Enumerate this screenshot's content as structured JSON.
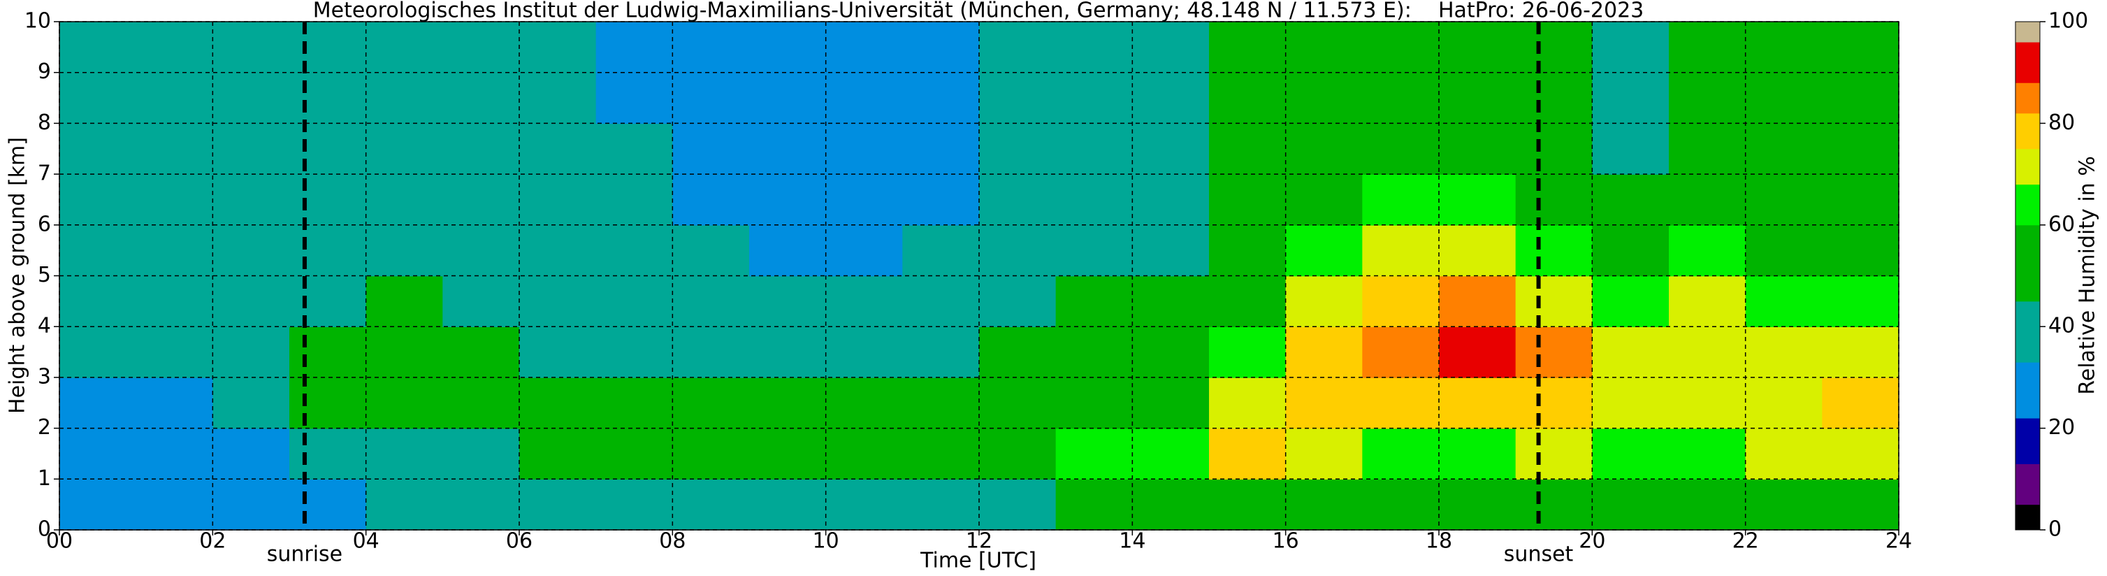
{
  "chart_data": {
    "type": "heatmap",
    "title": "Meteorologisches Institut der Ludwig-Maximilians-Universität (München, Germany; 48.148 N / 11.573 E):    HatPro: 26-06-2023",
    "x_label": "Time [UTC]",
    "y_label": "Height above ground [km]",
    "colorbar_label": "Relative Humidity in %",
    "xlim": [
      0,
      24
    ],
    "ylim": [
      0,
      10
    ],
    "xticks": [
      {
        "value": 0,
        "label": "00"
      },
      {
        "value": 2,
        "label": "02"
      },
      {
        "value": 4,
        "label": "04"
      },
      {
        "value": 6,
        "label": "06"
      },
      {
        "value": 8,
        "label": "08"
      },
      10,
      12,
      14,
      16,
      18,
      20,
      22,
      24
    ],
    "yticks": [
      0,
      1,
      2,
      3,
      4,
      5,
      6,
      7,
      8,
      9,
      10
    ],
    "grid": true,
    "clim": [
      0,
      100
    ],
    "cticks": [
      0,
      20,
      40,
      60,
      80,
      100
    ],
    "colorscale": [
      {
        "from": 0,
        "color": "#000000"
      },
      {
        "from": 5,
        "color": "#62007f"
      },
      {
        "from": 13,
        "color": "#0000a8"
      },
      {
        "from": 22,
        "color": "#008ee0"
      },
      {
        "from": 33,
        "color": "#00a896"
      },
      {
        "from": 45,
        "color": "#00b400"
      },
      {
        "from": 60,
        "color": "#00f000"
      },
      {
        "from": 68,
        "color": "#d8f000"
      },
      {
        "from": 75,
        "color": "#ffce00"
      },
      {
        "from": 82,
        "color": "#ff8000"
      },
      {
        "from": 88,
        "color": "#e80000"
      },
      {
        "from": 96,
        "color": "#c8b890"
      }
    ],
    "z": [
      [
        30,
        30,
        31,
        33,
        36,
        38,
        38,
        38,
        38,
        38
      ],
      [
        30,
        30,
        31,
        33,
        36,
        38,
        38,
        38,
        38,
        38
      ],
      [
        31,
        31,
        33,
        35,
        37,
        38,
        38,
        38,
        38,
        38
      ],
      [
        32,
        33,
        46,
        47,
        40,
        38,
        38,
        38,
        38,
        38
      ],
      [
        33,
        34,
        47,
        48,
        45,
        38,
        38,
        38,
        38,
        38
      ],
      [
        34,
        35,
        46,
        47,
        42,
        38,
        38,
        38,
        38,
        38
      ],
      [
        42,
        50,
        50,
        40,
        37,
        37,
        37,
        37,
        36,
        36
      ],
      [
        41,
        52,
        51,
        39,
        37,
        36,
        35,
        33,
        32,
        32
      ],
      [
        40,
        52,
        51,
        38,
        35,
        33,
        31,
        30,
        30,
        30
      ],
      [
        40,
        52,
        52,
        38,
        35,
        31,
        29,
        29,
        29,
        29
      ],
      [
        40,
        52,
        52,
        38,
        35,
        31,
        29,
        29,
        29,
        30
      ],
      [
        41,
        55,
        54,
        42,
        38,
        34,
        32,
        31,
        31,
        32
      ],
      [
        43,
        58,
        55,
        45,
        40,
        36,
        34,
        33,
        33,
        33
      ],
      [
        47,
        60,
        55,
        47,
        48,
        38,
        36,
        36,
        36,
        36
      ],
      [
        50,
        60,
        55,
        48,
        48,
        40,
        38,
        38,
        38,
        38
      ],
      [
        55,
        78,
        72,
        62,
        55,
        48,
        46,
        46,
        46,
        46
      ],
      [
        58,
        72,
        78,
        76,
        70,
        64,
        55,
        55,
        55,
        55
      ],
      [
        55,
        66,
        76,
        84,
        76,
        70,
        65,
        55,
        52,
        50
      ],
      [
        56,
        66,
        80,
        90,
        86,
        74,
        66,
        56,
        52,
        50
      ],
      [
        56,
        68,
        80,
        84,
        74,
        66,
        58,
        54,
        52,
        52
      ],
      [
        50,
        66,
        70,
        68,
        64,
        55,
        48,
        44,
        44,
        42
      ],
      [
        52,
        66,
        70,
        70,
        68,
        62,
        52,
        50,
        54,
        52
      ],
      [
        52,
        68,
        72,
        68,
        64,
        58,
        50,
        48,
        50,
        48
      ],
      [
        54,
        72,
        76,
        72,
        66,
        58,
        52,
        50,
        48,
        46
      ]
    ],
    "markers": [
      {
        "x": 3.2,
        "label": "sunrise"
      },
      {
        "x": 19.3,
        "label": "sunset"
      }
    ]
  }
}
